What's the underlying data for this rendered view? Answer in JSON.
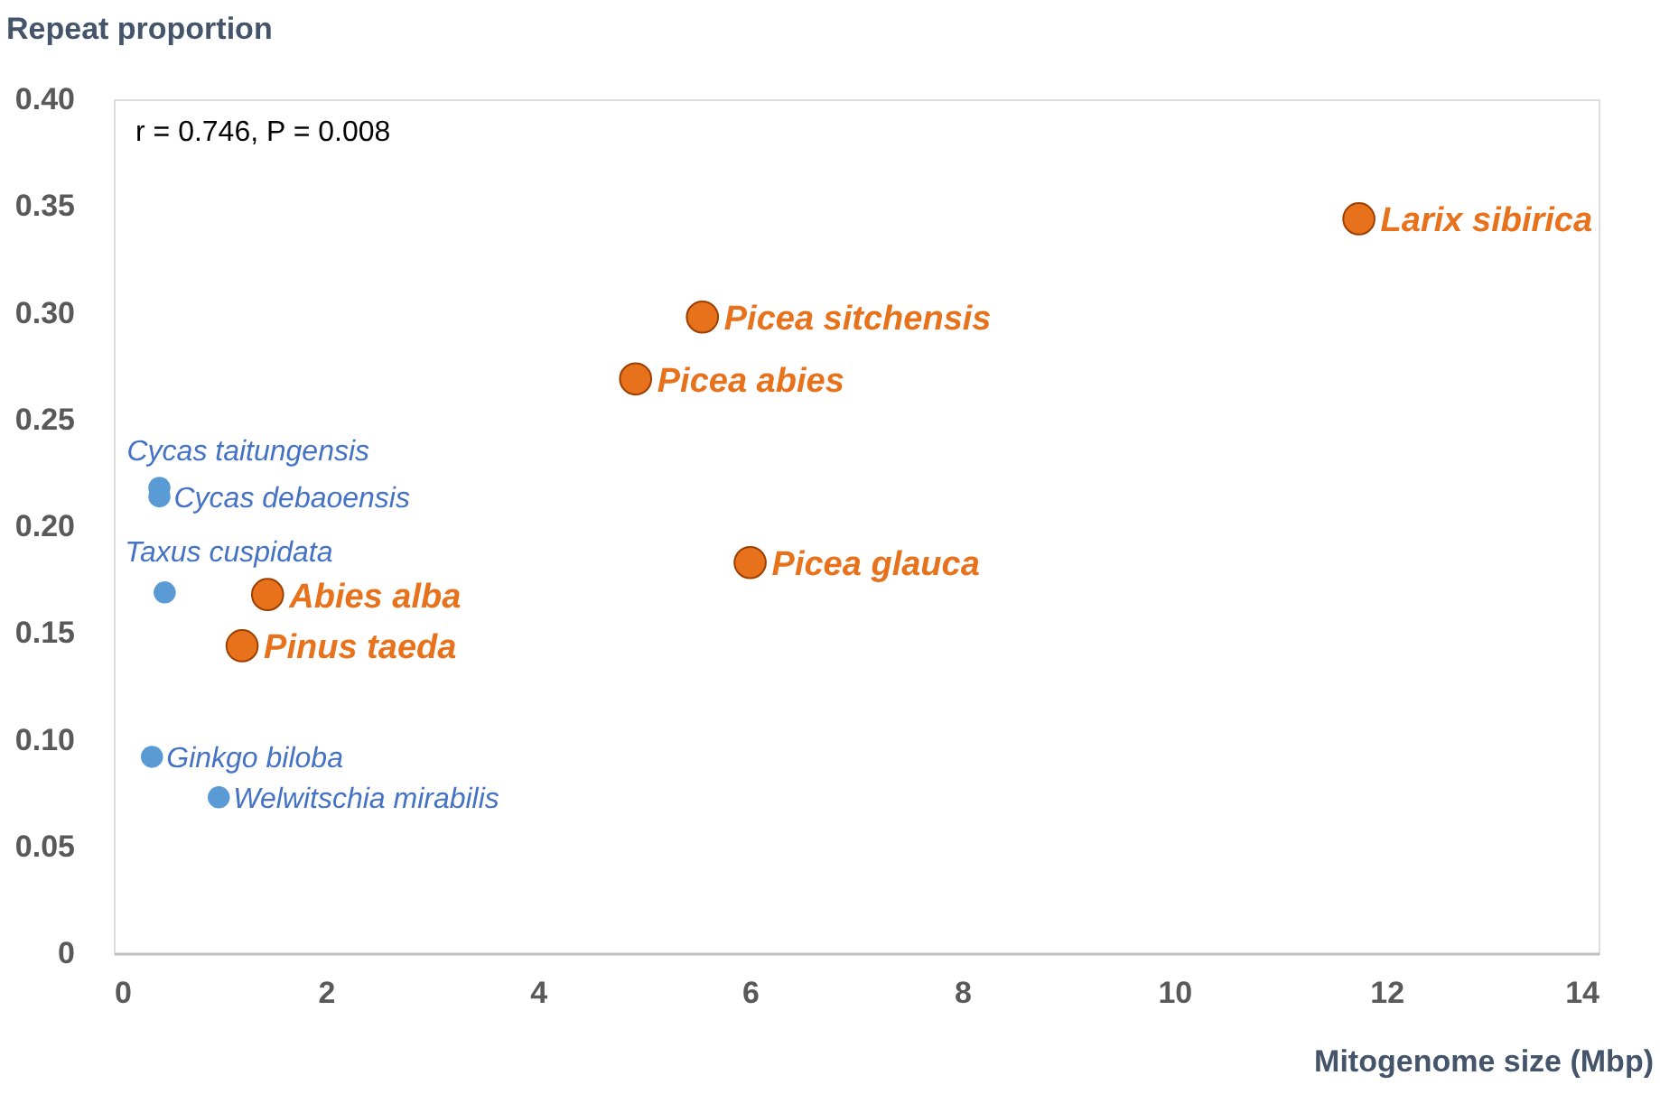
{
  "chart_data": {
    "type": "scatter",
    "xlabel": "Mitogenome size (Mbp)",
    "ylabel": "Repeat proportion",
    "xlim": [
      0,
      14
    ],
    "xticks": [
      0,
      2,
      4,
      6,
      8,
      10,
      12,
      14
    ],
    "ylim": [
      0,
      0.4
    ],
    "yticks": [
      0,
      {
        "value": 0.05,
        "label": "0.05"
      },
      {
        "value": 0.1,
        "label": "0.10"
      },
      {
        "value": 0.15,
        "label": "0.15"
      },
      {
        "value": 0.2,
        "label": "0.20"
      },
      {
        "value": 0.25,
        "label": "0.25"
      },
      {
        "value": 0.3,
        "label": "0.30"
      },
      {
        "value": 0.35,
        "label": "0.35"
      },
      {
        "value": 0.4,
        "label": "0.40"
      }
    ],
    "grid": false,
    "marker": "circle",
    "series": [
      {
        "color": "#e8721c",
        "x": [
          11.74,
          5.55,
          4.92,
          6.0,
          1.45,
          1.21
        ],
        "values": [
          0.344,
          0.298,
          0.269,
          0.183,
          0.168,
          0.144
        ]
      },
      {
        "color": "#5b9bd5",
        "x": [
          0.43,
          0.43,
          0.48,
          0.36,
          0.99
        ],
        "values": [
          0.218,
          0.214,
          0.169,
          0.092,
          0.073
        ]
      }
    ],
    "annotations": [
      "r = 0.746, P = 0.008",
      {
        "text": "Larix sibirica",
        "x": 11.74,
        "y": 0.344
      },
      {
        "text": "Picea sitchensis",
        "x": 5.55,
        "y": 0.298
      },
      {
        "text": "Picea abies",
        "x": 4.92,
        "y": 0.269
      },
      {
        "text": "Picea glauca",
        "x": 6.0,
        "y": 0.183
      },
      {
        "text": "Abies alba",
        "x": 1.45,
        "y": 0.168
      },
      {
        "text": "Pinus taeda",
        "x": 1.21,
        "y": 0.144
      },
      {
        "text": "Cycas taitungensis",
        "x": 0.43,
        "y": 0.218
      },
      {
        "text": "Cycas debaoensis",
        "x": 0.43,
        "y": 0.214
      },
      {
        "text": "Taxus cuspidata",
        "x": 0.48,
        "y": 0.169
      },
      {
        "text": "Ginkgo biloba",
        "x": 0.36,
        "y": 0.092
      },
      {
        "text": "Welwitschia mirabilis",
        "x": 0.99,
        "y": 0.073
      }
    ]
  }
}
